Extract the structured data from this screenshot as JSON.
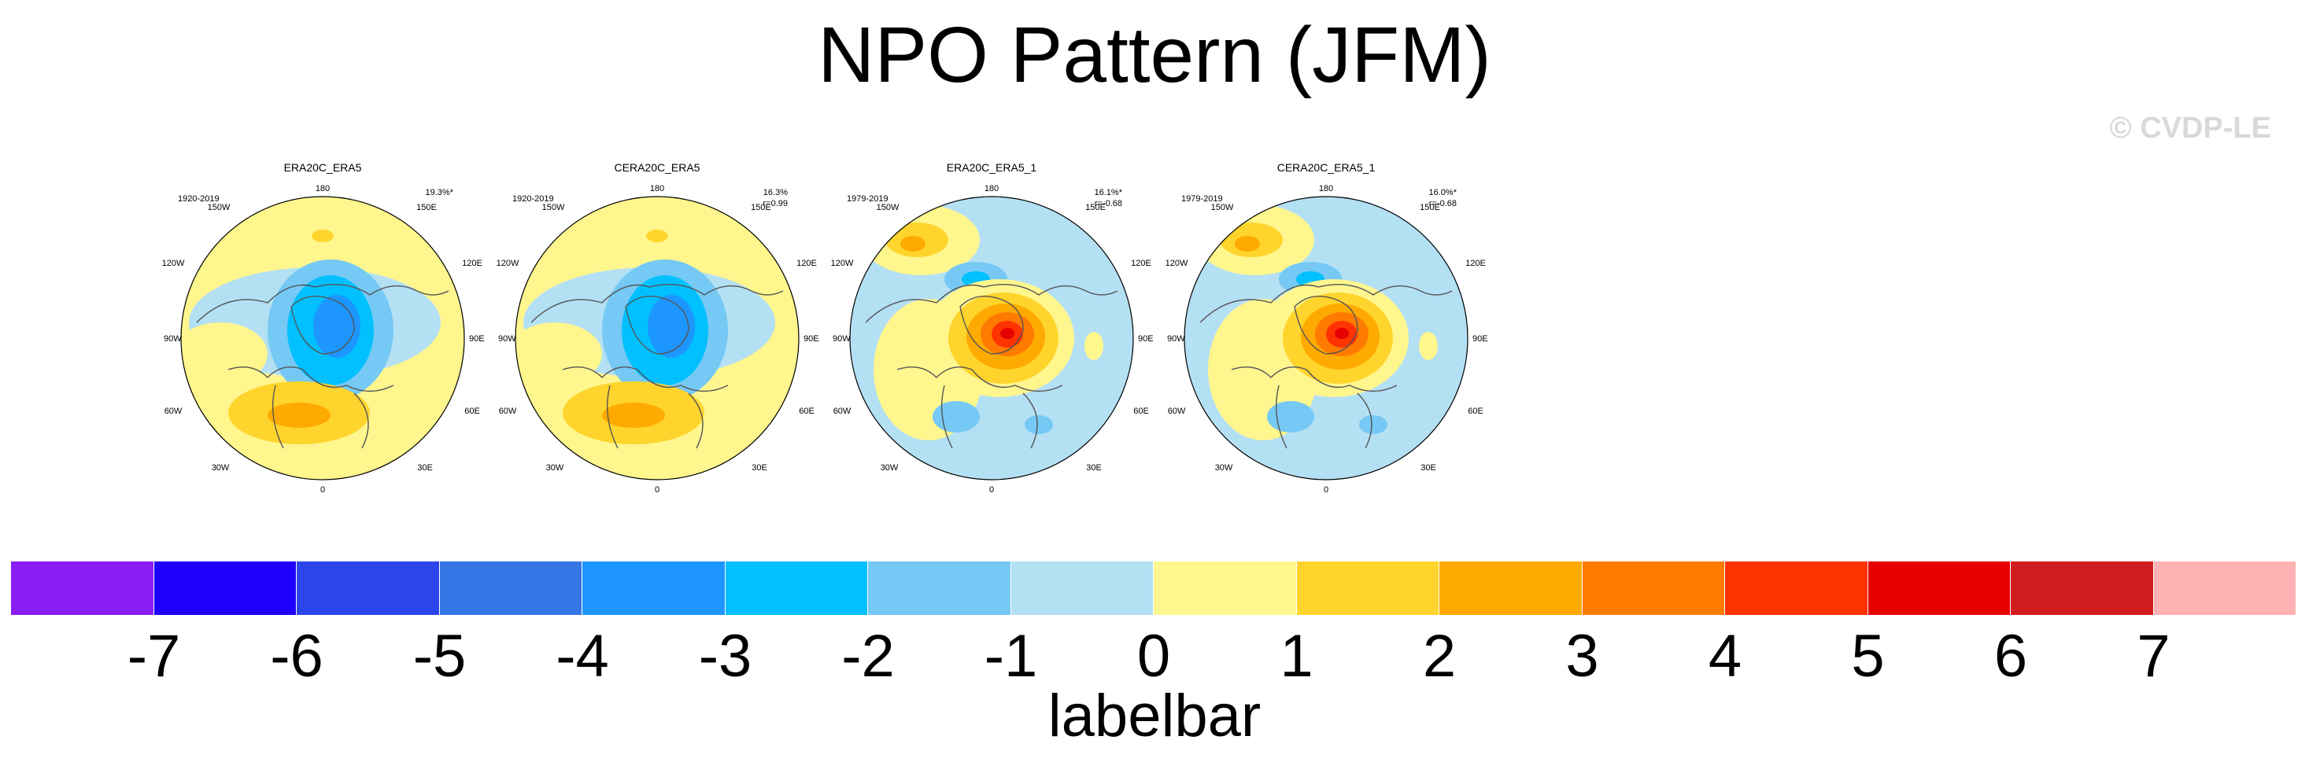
{
  "title": "NPO Pattern (JFM)",
  "watermark": "© CVDP-LE",
  "map_labels": {
    "top": "180",
    "bottom": "0",
    "left": "90W",
    "right": "90E",
    "upper_left1": "150W",
    "upper_right1": "150E",
    "upper_left2": "120W",
    "upper_right2": "120E",
    "lower_left1": "60W",
    "lower_right1": "60E",
    "lower_left2": "30W",
    "lower_right2": "30E"
  },
  "panels": [
    {
      "name": "ERA20C_ERA5",
      "period": "1920-2019",
      "pct": "19.3%*",
      "corr": "",
      "pattern": "negative"
    },
    {
      "name": "CERA20C_ERA5",
      "period": "1920-2019",
      "pct": "16.3%",
      "corr": "r=0.99",
      "pattern": "negative"
    },
    {
      "name": "ERA20C_ERA5_1",
      "period": "1979-2019",
      "pct": "16.1%*",
      "corr": "r=-0.68",
      "pattern": "positive"
    },
    {
      "name": "CERA20C_ERA5_1",
      "period": "1979-2019",
      "pct": "16.0%*",
      "corr": "r=-0.68",
      "pattern": "positive"
    }
  ],
  "labelbar": {
    "title": "labelbar",
    "tick_labels": [
      "-7",
      "-6",
      "-5",
      "-4",
      "-3",
      "-2",
      "-1",
      "0",
      "1",
      "2",
      "3",
      "4",
      "5",
      "6",
      "7"
    ],
    "colors": [
      "#8a1ef2",
      "#1f00ff",
      "#2c45eb",
      "#3575e6",
      "#1e96ff",
      "#00c0ff",
      "#75c9f4",
      "#b4e0f4",
      "#fff68e",
      "#ffd42d",
      "#ffaa00",
      "#ff7b00",
      "#ff3300",
      "#e60000",
      "#d21d20",
      "#ffb2b3"
    ]
  }
}
